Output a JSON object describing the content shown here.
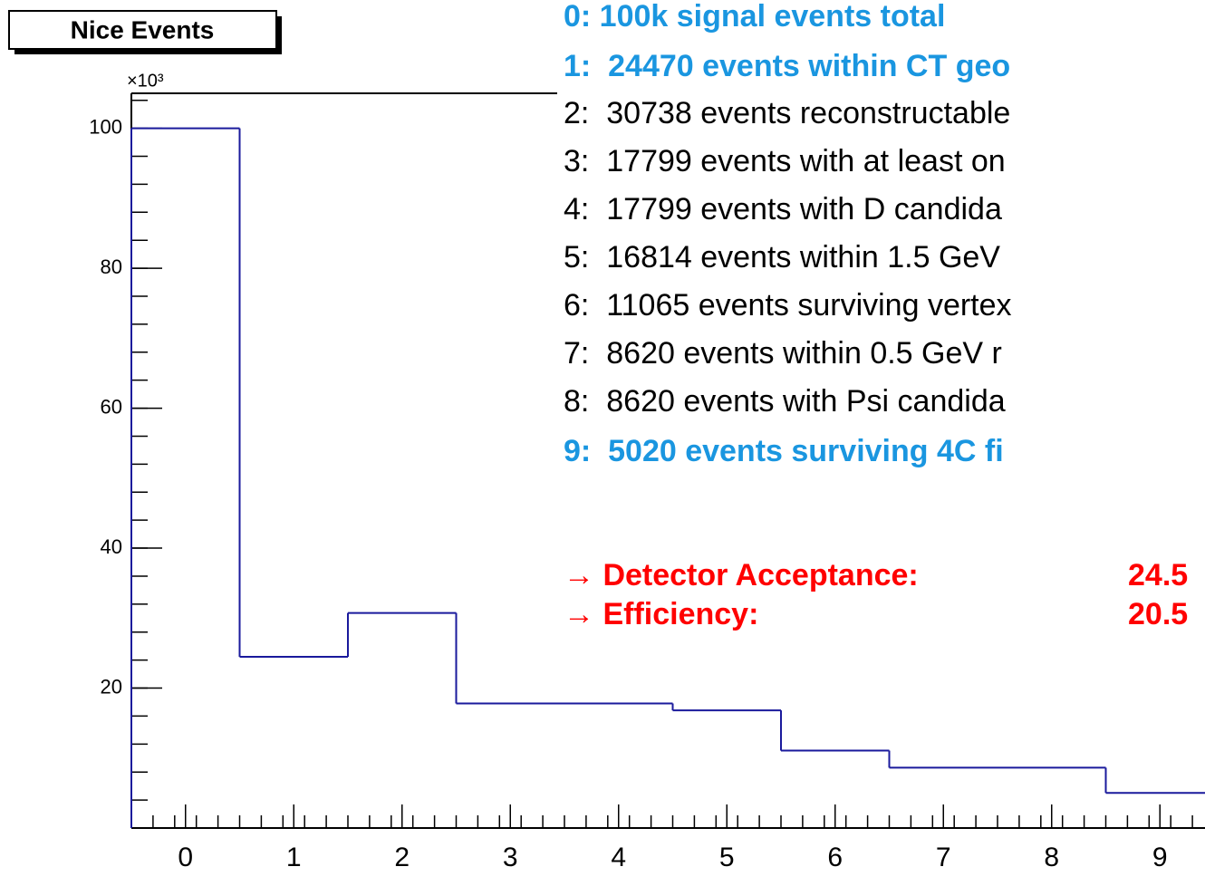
{
  "chart_data": {
    "type": "histogram",
    "title": "Nice Events",
    "multiplier": "×10³",
    "categories": [
      "0",
      "1",
      "2",
      "3",
      "4",
      "5",
      "6",
      "7",
      "8",
      "9"
    ],
    "values": [
      100,
      24.47,
      30.738,
      17.799,
      17.799,
      16.814,
      11.065,
      8.62,
      8.62,
      5.02
    ],
    "color": "#1a1a9c",
    "ylim": [
      0,
      105
    ],
    "yticks": [
      20,
      40,
      60,
      80,
      100
    ],
    "annotations": [
      {
        "text": "0: 100k signal events total",
        "color": "#1a96e0",
        "bold": true
      },
      {
        "text": "1:  24470 events within CT geo",
        "color": "#1a96e0",
        "bold": true
      },
      {
        "text": "2:  30738 events reconstructable",
        "color": "#000000",
        "bold": false
      },
      {
        "text": "3:  17799 events with at least on",
        "color": "#000000",
        "bold": false
      },
      {
        "text": "4:  17799 events with D candida",
        "color": "#000000",
        "bold": false
      },
      {
        "text": "5:  16814 events within 1.5 GeV",
        "color": "#000000",
        "bold": false
      },
      {
        "text": "6:  11065 events surviving vertex",
        "color": "#000000",
        "bold": false
      },
      {
        "text": "7:  8620 events within 0.5 GeV r",
        "color": "#000000",
        "bold": false
      },
      {
        "text": "8:  8620 events with Psi candida",
        "color": "#000000",
        "bold": false
      },
      {
        "text": "9:  5020 events surviving 4C fi",
        "color": "#1a96e0",
        "bold": true
      }
    ],
    "results": [
      {
        "label": "→ Detector Acceptance:",
        "value": "24.5"
      },
      {
        "label": "→ Efficiency:",
        "value": "20.5"
      }
    ],
    "results_color": "#ff0000"
  }
}
